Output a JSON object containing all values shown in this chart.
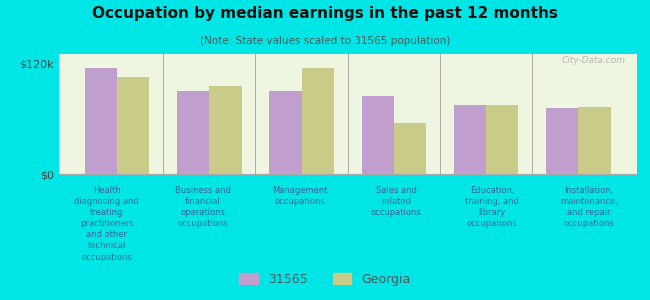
{
  "title": "Occupation by median earnings in the past 12 months",
  "subtitle": "(Note: State values scaled to 31565 population)",
  "background_color": "#00e5e5",
  "plot_bg_color": "#eef5e0",
  "categories": [
    "Health\ndiagnosing and\ntreating\npractitioners\nand other\ntechnical\noccupations",
    "Business and\nfinancial\noperations\noccupations",
    "Management\noccupations",
    "Sales and\nrelated\noccupations",
    "Education,\ntraining, and\nlibrary\noccupations",
    "Installation,\nmaintenance,\nand repair\noccupations"
  ],
  "values_31565": [
    115000,
    90000,
    90000,
    85000,
    75000,
    72000
  ],
  "values_georgia": [
    105000,
    95000,
    115000,
    55000,
    75000,
    73000
  ],
  "color_31565": "#c09ece",
  "color_georgia": "#c8cc88",
  "ylim": [
    0,
    130000
  ],
  "yticks": [
    0,
    120000
  ],
  "ytick_labels": [
    "$0",
    "$120k"
  ],
  "legend_labels": [
    "31565",
    "Georgia"
  ],
  "bar_width": 0.35,
  "watermark": "City-Data.com"
}
